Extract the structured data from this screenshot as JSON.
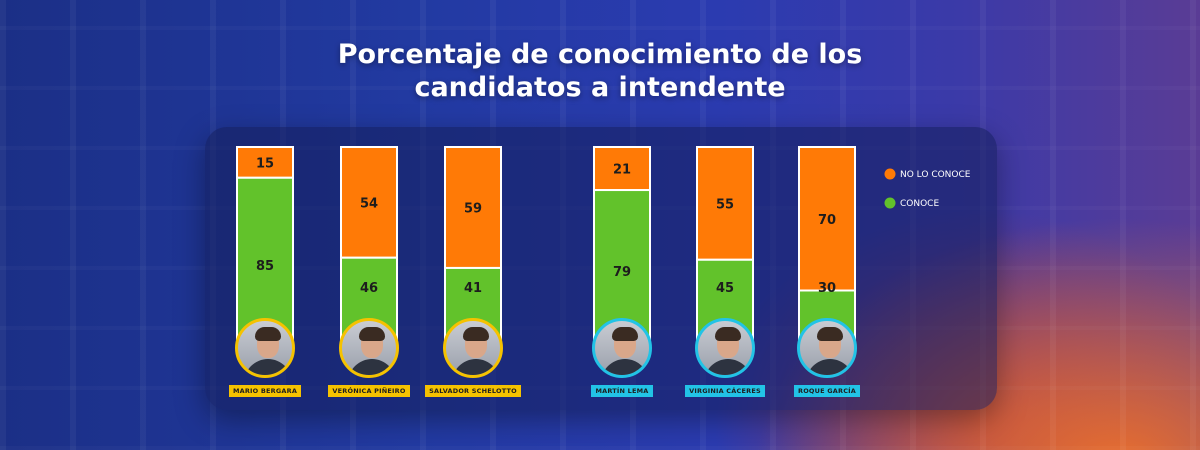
{
  "title": {
    "line1": "Porcentaje de conocimiento de los",
    "line2": "candidatos a intendente"
  },
  "colors": {
    "no_conoce": "#ff7a06",
    "conoce": "#62c22b",
    "ring_group1": "#f5c200",
    "ring_group2": "#22c3e6",
    "tag_group1": "#f5c200",
    "tag_group2": "#22c3e6"
  },
  "chart_data": {
    "type": "bar",
    "stacked": true,
    "normalized": true,
    "categories": [
      "MARIO BERGARA",
      "VERÓNICA PIÑEIRO",
      "SALVADOR SCHELOTTO",
      "MARTÍN LEMA",
      "VIRGINIA CÁCERES",
      "ROQUE GARCÍA"
    ],
    "series": [
      {
        "name": "CONOCE",
        "values": [
          85,
          46,
          41,
          79,
          45,
          30
        ]
      },
      {
        "name": "NO LO CONOCE",
        "values": [
          15,
          54,
          59,
          21,
          55,
          70
        ]
      }
    ],
    "ylim": [
      0,
      100
    ],
    "legend": [
      "NO LO CONOCE",
      "CONOCE"
    ],
    "legend_position": "right",
    "grid": false
  },
  "candidates": [
    {
      "name": "MARIO BERGARA",
      "group": 1
    },
    {
      "name": "VERÓNICA PIÑEIRO",
      "group": 1
    },
    {
      "name": "SALVADOR SCHELOTTO",
      "group": 1
    },
    {
      "name": "MARTÍN LEMA",
      "group": 2
    },
    {
      "name": "VIRGINIA CÁCERES",
      "group": 2
    },
    {
      "name": "ROQUE GARCÍA",
      "group": 2
    }
  ]
}
